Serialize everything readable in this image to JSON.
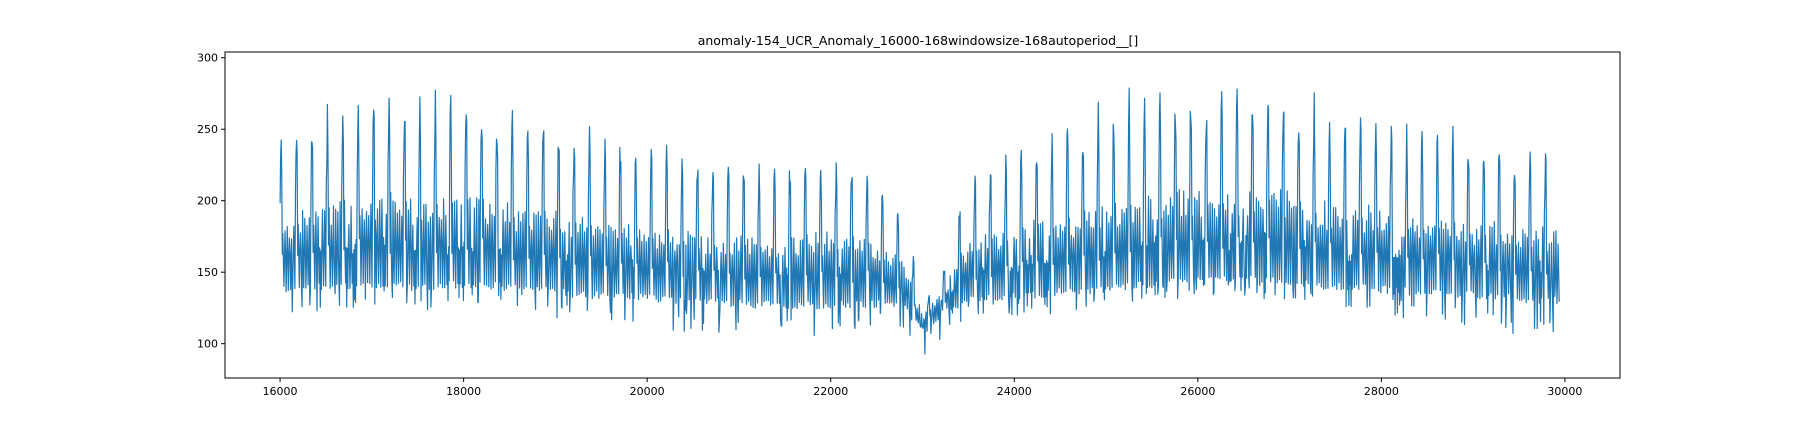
{
  "chart_data": {
    "type": "line",
    "title": "anomaly-154_UCR_Anomaly_16000-168windowsize-168autoperiod__[]",
    "xlabel": "",
    "ylabel": "",
    "xlim": [
      15400,
      30600
    ],
    "ylim": [
      76,
      304
    ],
    "x_ticks": [
      16000,
      18000,
      20000,
      22000,
      24000,
      26000,
      28000,
      30000
    ],
    "y_ticks": [
      100,
      150,
      200,
      250,
      300
    ],
    "x_tick_labels": [
      "16000",
      "18000",
      "20000",
      "22000",
      "24000",
      "26000",
      "28000",
      "30000"
    ],
    "y_tick_labels": [
      "100",
      "150",
      "200",
      "250",
      "300"
    ],
    "grid": false,
    "legend": "none",
    "series": [
      {
        "color": "#1f77b4",
        "x_start": 16000,
        "x_end": 29940,
        "period": 168,
        "envelope_x": [
          16000,
          16500,
          17000,
          17500,
          18000,
          18500,
          19000,
          19500,
          20000,
          20500,
          21000,
          21500,
          22000,
          22500,
          22800,
          23000,
          23200,
          23500,
          24000,
          24500,
          25000,
          25500,
          26000,
          26500,
          27000,
          27500,
          28000,
          28500,
          29000,
          29500,
          29940
        ],
        "envelope_upper": [
          250,
          268,
          283,
          278,
          280,
          273,
          262,
          255,
          245,
          238,
          230,
          232,
          238,
          225,
          195,
          135,
          150,
          222,
          240,
          255,
          275,
          283,
          282,
          287,
          278,
          268,
          262,
          258,
          248,
          242,
          240
        ],
        "envelope_lower": [
          120,
          122,
          125,
          126,
          128,
          125,
          120,
          116,
          112,
          108,
          103,
          106,
          106,
          112,
          108,
          90,
          105,
          118,
          120,
          122,
          125,
          130,
          132,
          135,
          130,
          125,
          120,
          116,
          112,
          108,
          104
        ],
        "envelope_base": [
          138,
          140,
          142,
          140,
          142,
          140,
          136,
          134,
          132,
          130,
          128,
          127,
          127,
          128,
          125,
          108,
          120,
          132,
          134,
          136,
          138,
          142,
          144,
          146,
          144,
          140,
          138,
          136,
          134,
          132,
          130
        ]
      }
    ]
  }
}
